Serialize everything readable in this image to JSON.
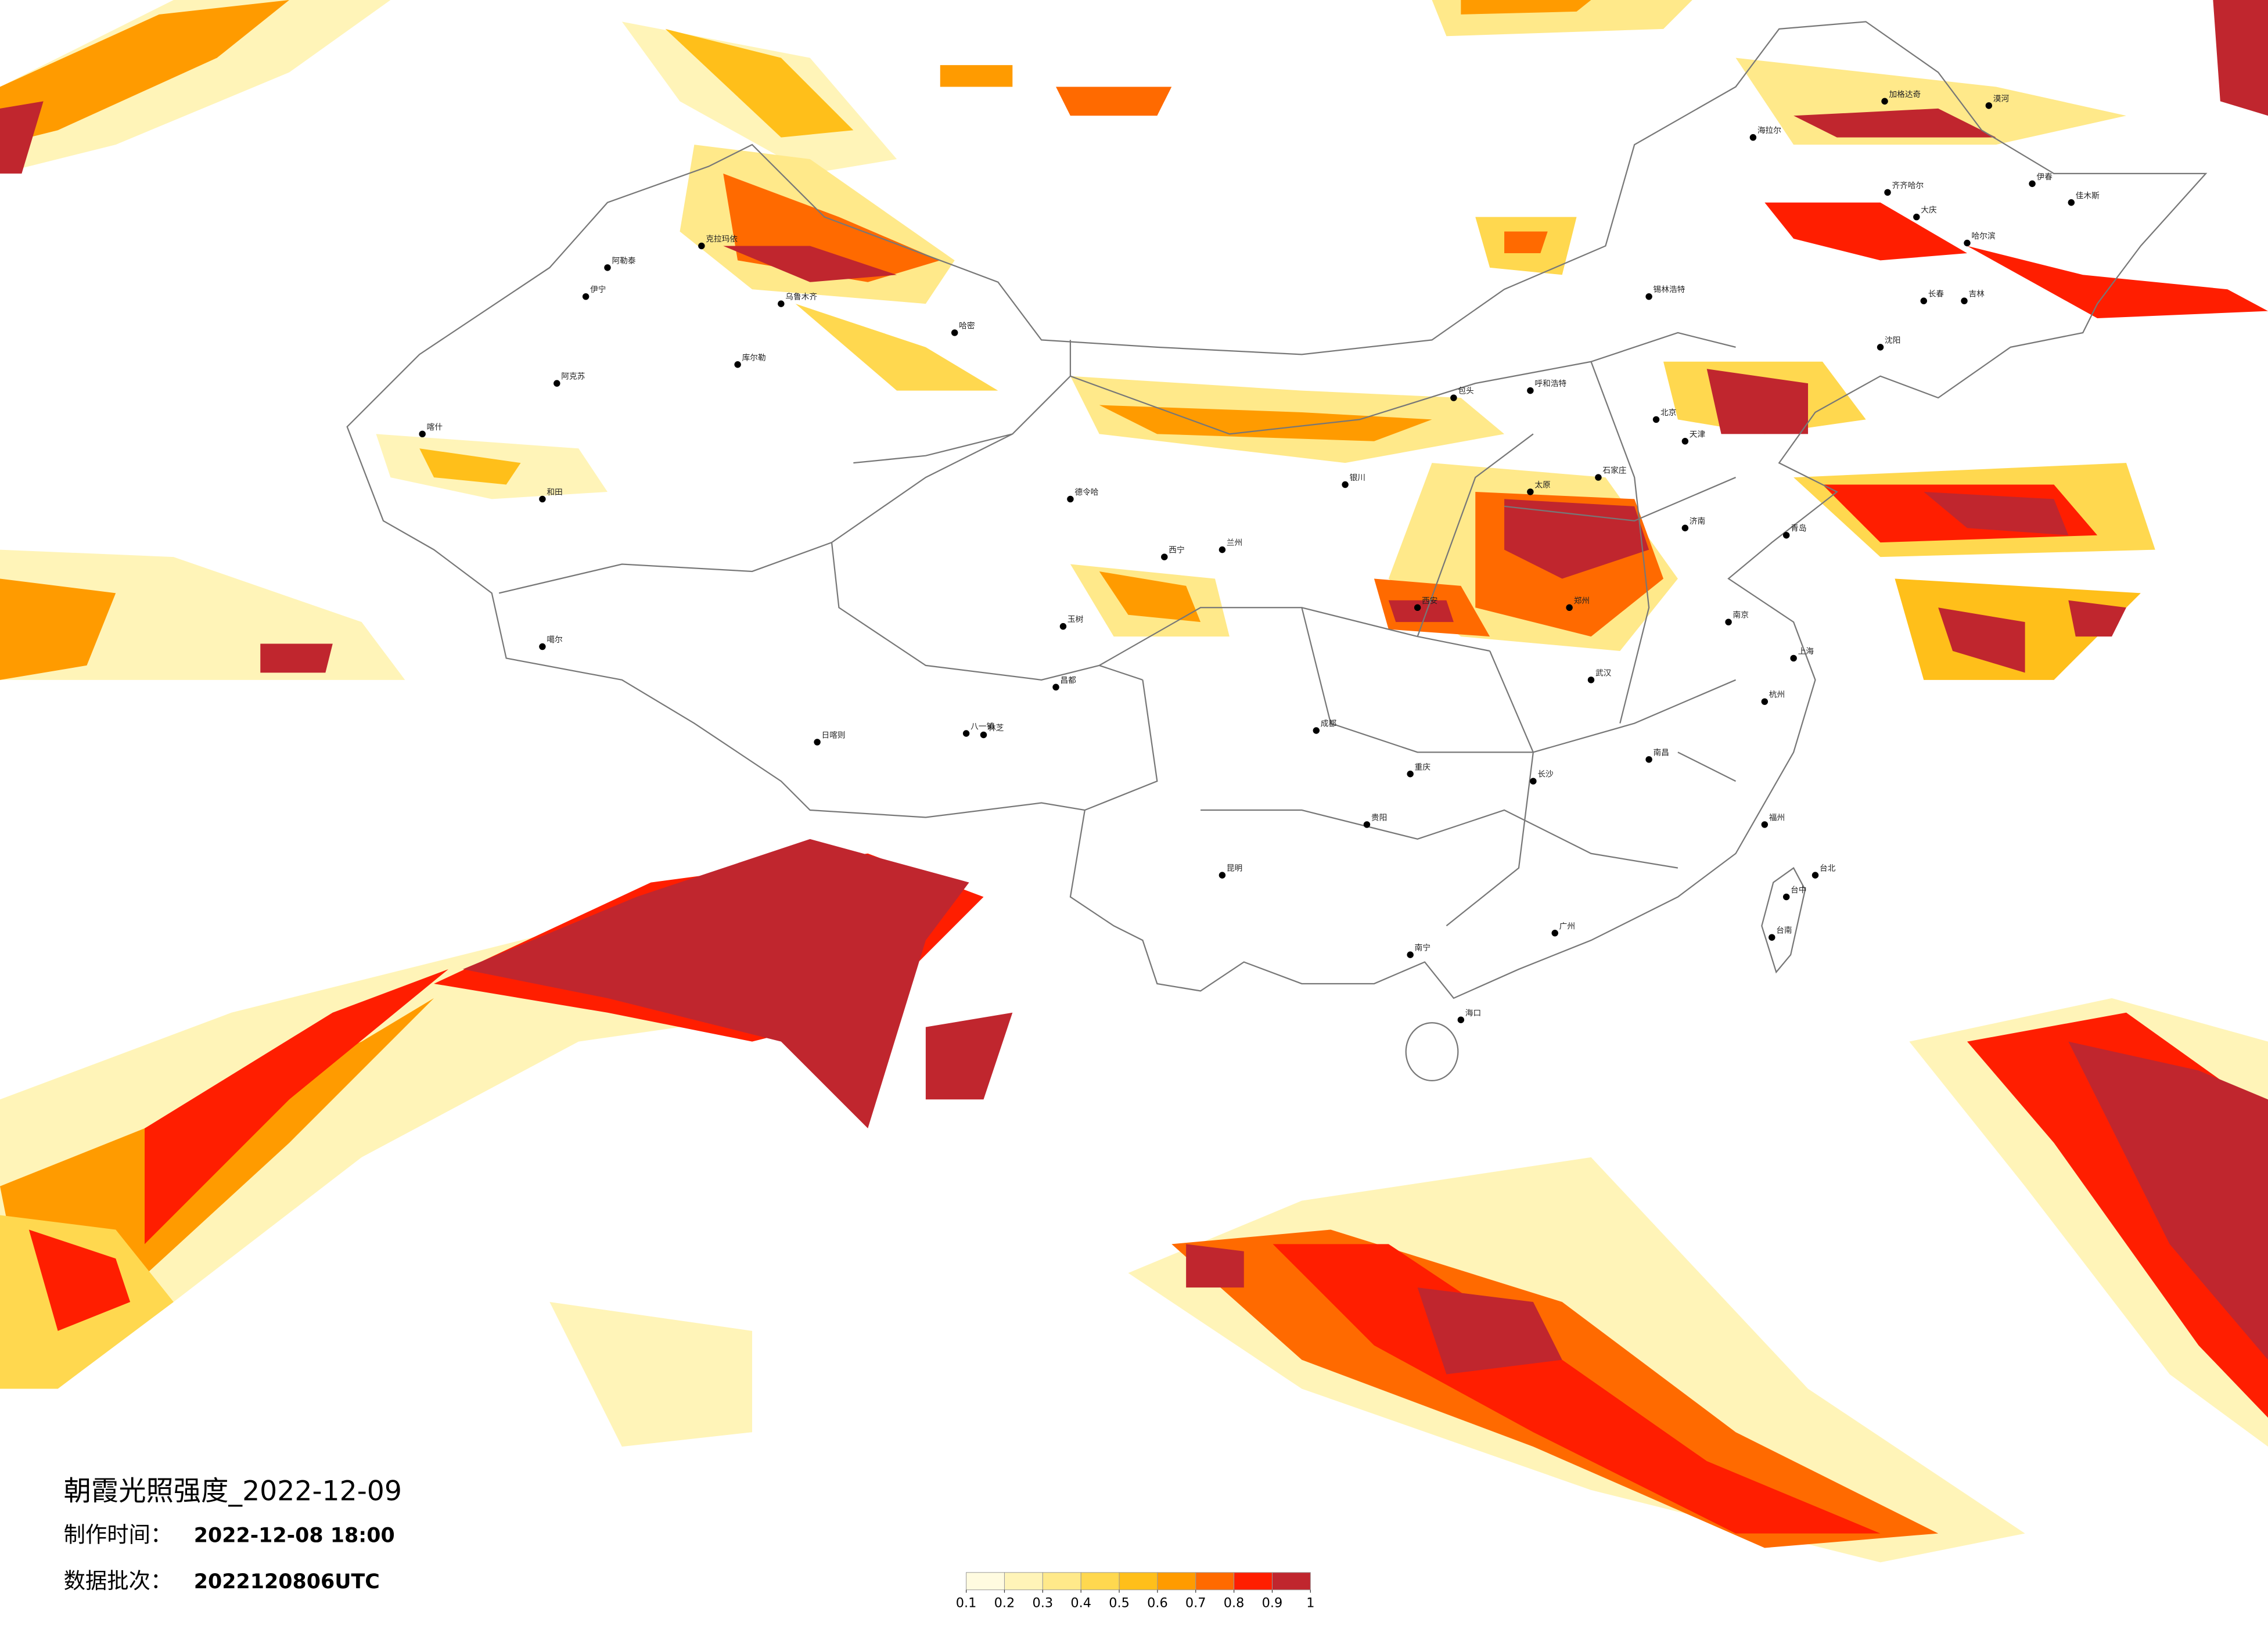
{
  "header": {
    "title": "朝霞光照强度_2022-12-09"
  },
  "info": [
    {
      "label": "制作时间：",
      "value": "2022-12-08 18:00"
    },
    {
      "label": "数据批次：",
      "value": "2022120806UTC"
    }
  ],
  "legend": {
    "levels": [
      0.1,
      0.2,
      0.3,
      0.4,
      0.5,
      0.6,
      0.7,
      0.8,
      0.9,
      1
    ],
    "colors": [
      "#fffbe0",
      "#fff4b8",
      "#ffe98a",
      "#ffd84f",
      "#ffbf1a",
      "#ff9b00",
      "#ff6a00",
      "#ff1e00",
      "#c0262e"
    ]
  },
  "cities": [
    "漠河",
    "加格达奇",
    "海拉尔",
    "齐齐哈尔",
    "大庆",
    "哈尔滨",
    "伊春",
    "佳木斯",
    "长春",
    "吉林",
    "沈阳",
    "锡林浩特",
    "呼和浩特",
    "包头",
    "北京",
    "天津",
    "石家庄",
    "太原",
    "济南",
    "青岛",
    "郑州",
    "西安",
    "兰州",
    "西宁",
    "银川",
    "成都",
    "重庆",
    "贵阳",
    "昆明",
    "南宁",
    "广州",
    "海口",
    "长沙",
    "武汉",
    "南昌",
    "南京",
    "上海",
    "杭州",
    "福州",
    "台北",
    "台中",
    "台南",
    "乌鲁木齐",
    "克拉玛依",
    "伊宁",
    "阿克苏",
    "喀什",
    "和田",
    "哈密",
    "库尔勒",
    "德令哈",
    "日喀则",
    "八一镇",
    "林芝",
    "昌都",
    "噶尔",
    "玉树",
    "阿勒泰"
  ]
}
